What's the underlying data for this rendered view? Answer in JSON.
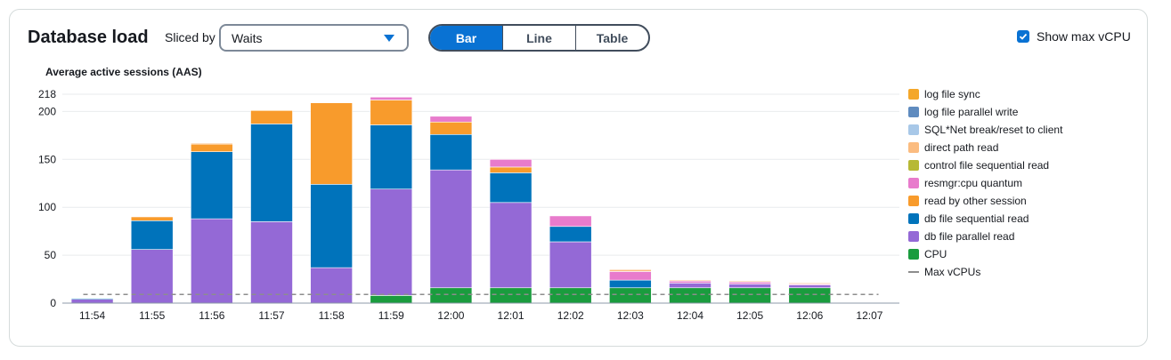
{
  "header": {
    "title": "Database load",
    "sliced_by_label": "Sliced by",
    "sliced_by_value": "Waits",
    "view_options": [
      "Bar",
      "Line",
      "Table"
    ],
    "selected_view": "Bar",
    "show_max_vcpu_label": "Show max vCPU",
    "show_max_vcpu_checked": true
  },
  "chart_data": {
    "type": "bar",
    "stacked": true,
    "title": "Database load",
    "ylabel": "Average active sessions (AAS)",
    "ylim": [
      0,
      218
    ],
    "y_ticks": [
      0,
      50,
      100,
      150,
      200,
      218
    ],
    "categories": [
      "11:54",
      "11:55",
      "11:56",
      "11:57",
      "11:58",
      "11:59",
      "12:00",
      "12:01",
      "12:02",
      "12:03",
      "12:04",
      "12:05",
      "12:06",
      "12:07"
    ],
    "max_vcpu": 9,
    "series": [
      {
        "name": "CPU",
        "color": "#1a9c3e",
        "values": [
          0,
          0,
          0,
          0,
          0,
          8,
          16,
          16,
          16,
          16,
          16,
          16,
          16,
          0
        ]
      },
      {
        "name": "db file parallel read",
        "color": "#9469d6",
        "values": [
          4,
          56,
          88,
          85,
          37,
          111,
          123,
          89,
          48,
          0,
          5,
          4,
          3,
          0
        ]
      },
      {
        "name": "db file sequential read",
        "color": "#0073bb",
        "values": [
          1,
          30,
          70,
          102,
          87,
          67,
          37,
          31,
          16,
          8,
          0,
          0,
          0,
          0
        ]
      },
      {
        "name": "read by other session",
        "color": "#f89b2c",
        "values": [
          0,
          4,
          8,
          14,
          85,
          26,
          13,
          6,
          0,
          0,
          0,
          0,
          0,
          0
        ]
      },
      {
        "name": "resmgr:cpu quantum",
        "color": "#e87bcc",
        "values": [
          0,
          0,
          0,
          0,
          0,
          3,
          6,
          8,
          11,
          9,
          2,
          2,
          1,
          0
        ]
      },
      {
        "name": "control file sequential read",
        "color": "#b7b935",
        "values": [
          0,
          0,
          0,
          0,
          0,
          0,
          0,
          0,
          0,
          0,
          0,
          0,
          0,
          0
        ]
      },
      {
        "name": "direct path read",
        "color": "#fbbc80",
        "values": [
          0,
          0,
          1,
          0,
          0,
          0,
          0,
          0,
          0,
          2,
          1,
          1,
          1,
          0
        ]
      },
      {
        "name": "SQL*Net break/reset to client",
        "color": "#a8c8e8",
        "values": [
          0,
          0,
          0,
          0,
          0,
          0,
          0,
          0,
          0,
          0,
          0,
          0,
          0,
          0
        ]
      },
      {
        "name": "log file parallel write",
        "color": "#5f8bbf",
        "values": [
          0,
          0,
          0,
          0,
          0,
          0,
          0,
          0,
          0,
          0,
          0,
          0,
          0,
          0
        ]
      },
      {
        "name": "log file sync",
        "color": "#f4a72a",
        "values": [
          0,
          0,
          0,
          0,
          0,
          0,
          0,
          0,
          0,
          0,
          0,
          0,
          0,
          0
        ]
      }
    ],
    "legend": [
      {
        "name": "log file sync",
        "color": "#f4a72a"
      },
      {
        "name": "log file parallel write",
        "color": "#5f8bbf"
      },
      {
        "name": "SQL*Net break/reset to client",
        "color": "#a8c8e8"
      },
      {
        "name": "direct path read",
        "color": "#fbbc80"
      },
      {
        "name": "control file sequential read",
        "color": "#b7b935"
      },
      {
        "name": "resmgr:cpu quantum",
        "color": "#e87bcc"
      },
      {
        "name": "read by other session",
        "color": "#f89b2c"
      },
      {
        "name": "db file sequential read",
        "color": "#0073bb"
      },
      {
        "name": "db file parallel read",
        "color": "#9469d6"
      },
      {
        "name": "CPU",
        "color": "#1a9c3e"
      }
    ],
    "legend_max_vcpu_label": "Max vCPUs"
  }
}
